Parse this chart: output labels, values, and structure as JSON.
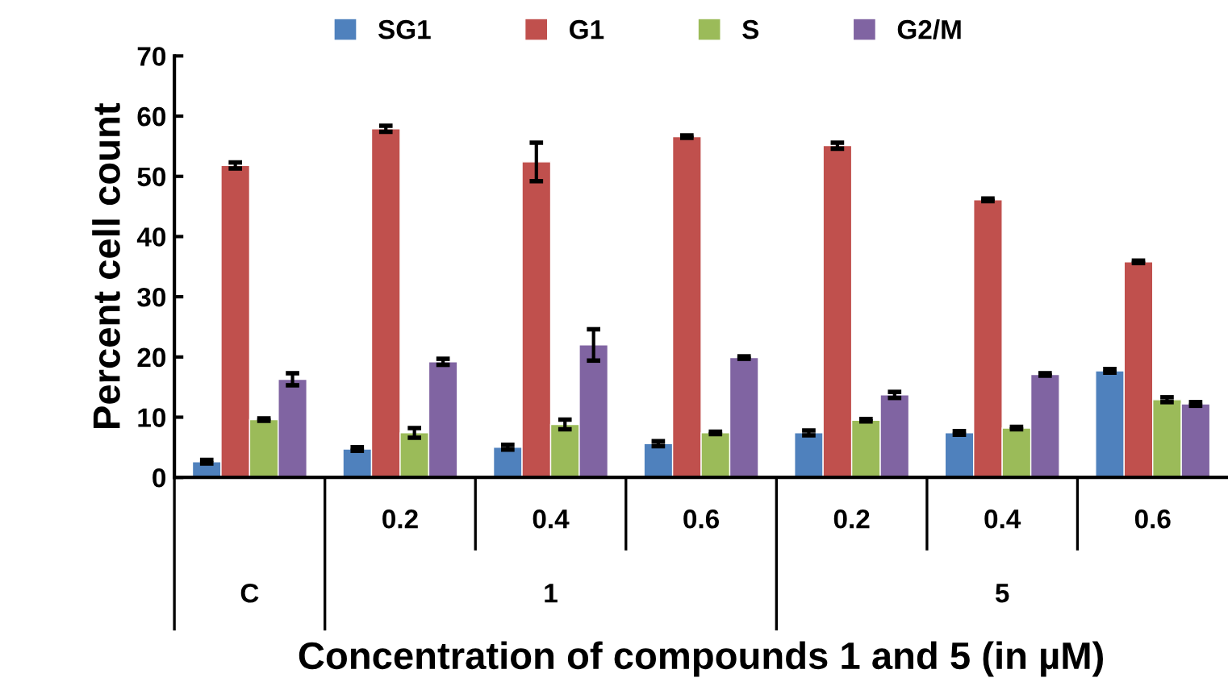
{
  "chart_data": {
    "type": "bar",
    "xlabel": "Concentration of compounds 1 and 5 (in µM)",
    "ylabel": "Percent cell count",
    "categories": [
      null,
      "0.2",
      "0.4",
      "0.6",
      "0.2",
      "0.4",
      "0.6"
    ],
    "annotations": [
      "C",
      "1",
      "5"
    ],
    "ylim": [
      0,
      70
    ],
    "yticks": [
      0,
      10,
      20,
      30,
      40,
      50,
      60,
      70
    ],
    "grid": false,
    "legend": "top",
    "series": [
      {
        "name": "SG1",
        "color": "#4f81bd",
        "values": [
          2.6,
          4.7,
          5.0,
          5.6,
          7.4,
          7.4,
          17.7
        ],
        "errors": [
          0.3,
          0.3,
          0.4,
          0.4,
          0.4,
          0.3,
          0.3
        ]
      },
      {
        "name": "G1",
        "color": "#c0504d",
        "values": [
          51.8,
          57.9,
          52.4,
          56.6,
          55.1,
          46.1,
          35.8
        ],
        "errors": [
          0.5,
          0.5,
          3.2,
          0.2,
          0.5,
          0.2,
          0.2
        ]
      },
      {
        "name": "S",
        "color": "#9bbb59",
        "values": [
          9.6,
          7.4,
          8.8,
          7.4,
          9.5,
          8.2,
          12.9
        ],
        "errors": [
          0.2,
          0.8,
          0.8,
          0.2,
          0.2,
          0.2,
          0.4
        ]
      },
      {
        "name": "G2/M",
        "color": "#8064a2",
        "values": [
          16.3,
          19.2,
          22.0,
          19.9,
          13.7,
          17.1,
          12.2
        ],
        "errors": [
          1.0,
          0.5,
          2.6,
          0.2,
          0.5,
          0.2,
          0.3
        ]
      }
    ]
  }
}
